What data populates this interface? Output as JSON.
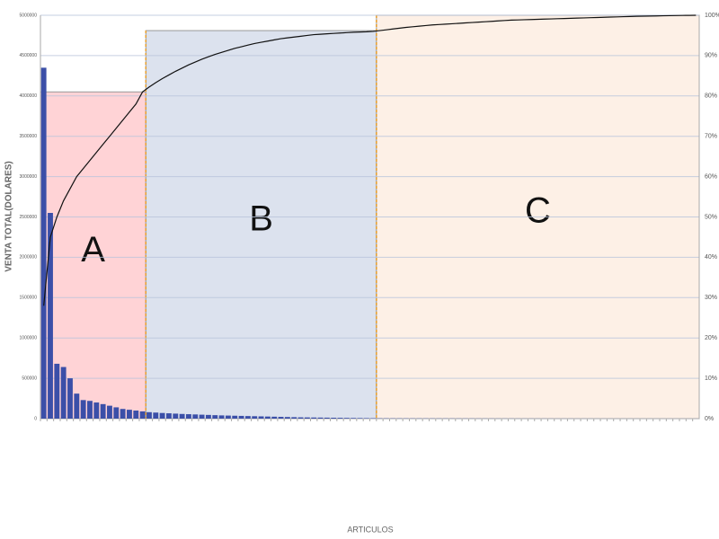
{
  "chart_data": {
    "type": "pareto",
    "y_label": "VENTA TOTAL(DOLARES)",
    "x_label": "ARTICULOS",
    "categories": [
      null,
      null,
      null,
      null,
      null,
      null,
      null,
      null,
      null,
      null,
      null,
      null,
      null,
      null,
      null,
      null,
      null,
      null,
      null,
      null,
      null,
      null,
      null,
      null,
      null,
      null,
      null,
      null,
      null,
      null,
      null,
      null,
      null,
      null,
      null,
      null,
      null,
      null,
      null,
      null,
      null,
      null,
      null,
      null,
      null,
      null,
      null,
      null,
      null,
      null,
      null,
      null,
      null,
      null,
      null,
      null,
      null,
      null,
      null,
      null,
      null,
      null,
      null,
      null,
      null,
      null,
      null,
      null,
      null,
      null,
      null,
      null,
      null,
      null,
      null,
      null,
      null,
      null,
      null,
      null,
      null,
      null,
      null,
      null,
      null,
      null,
      null,
      null,
      null,
      null,
      null,
      null,
      null,
      null,
      null,
      null,
      null,
      null,
      null,
      null
    ],
    "series": [
      {
        "type": "bar",
        "color": "#3b4fa8",
        "values": [
          4350000,
          2550000,
          680000,
          640000,
          500000,
          310000,
          230000,
          220000,
          200000,
          180000,
          160000,
          140000,
          120000,
          110000,
          100000,
          90000,
          80000,
          75000,
          70000,
          66000,
          62000,
          58000,
          55000,
          52000,
          49000,
          46000,
          43000,
          40000,
          38000,
          36000,
          34000,
          32000,
          30000,
          28000,
          26000,
          24000,
          22000,
          20000,
          18000,
          16000,
          15000,
          14000,
          13000,
          12000,
          11000,
          10000,
          9000,
          8000,
          7000,
          6000,
          5000,
          4000,
          3800,
          3600,
          3400,
          3200,
          3000,
          2900,
          2800,
          2700,
          2600,
          2500,
          2400,
          2300,
          2200,
          2100,
          2000,
          1900,
          1800,
          1700,
          1600,
          1500,
          1450,
          1400,
          1350,
          1300,
          1250,
          1200,
          1150,
          1100,
          1050,
          1000,
          950,
          900,
          850,
          800,
          780,
          760,
          740,
          720,
          700,
          680,
          660,
          640,
          620,
          600,
          580,
          560,
          540,
          520
        ]
      },
      {
        "type": "line",
        "axis": "y2",
        "color": "#111111",
        "values": [
          28,
          45,
          50,
          54,
          57,
          60,
          62,
          64,
          66,
          68,
          70,
          72,
          74,
          76,
          78,
          81,
          82.2,
          83.3,
          84.3,
          85.2,
          86.1,
          86.9,
          87.7,
          88.4,
          89.1,
          89.7,
          90.3,
          90.8,
          91.3,
          91.8,
          92.2,
          92.6,
          93.0,
          93.3,
          93.6,
          93.9,
          94.2,
          94.4,
          94.6,
          94.8,
          95.0,
          95.2,
          95.3,
          95.4,
          95.5,
          95.6,
          95.7,
          95.8,
          95.85,
          95.9,
          96,
          96.2,
          96.4,
          96.6,
          96.8,
          97.0,
          97.15,
          97.3,
          97.45,
          97.6,
          97.7,
          97.8,
          97.9,
          98.0,
          98.1,
          98.2,
          98.3,
          98.4,
          98.5,
          98.6,
          98.7,
          98.8,
          98.85,
          98.9,
          98.95,
          99.0,
          99.05,
          99.1,
          99.15,
          99.2,
          99.25,
          99.3,
          99.35,
          99.4,
          99.45,
          99.5,
          99.55,
          99.6,
          99.65,
          99.7,
          99.75,
          99.78,
          99.81,
          99.84,
          99.87,
          99.9,
          99.93,
          99.96,
          99.98,
          100
        ]
      }
    ],
    "zones": [
      {
        "label": "A",
        "start": 0,
        "end": 15,
        "top": 4050000,
        "color": "#ffd3d6"
      },
      {
        "label": "B",
        "start": 16,
        "end": 50,
        "top": 4810000,
        "color": "#dce2ee"
      },
      {
        "label": "C",
        "start": 51,
        "end": 99,
        "top": 5000000,
        "color": "#fdf0e6"
      }
    ],
    "ylim": [
      0,
      5000000
    ],
    "yticks": [
      0,
      500000,
      1000000,
      1500000,
      2000000,
      2500000,
      3000000,
      3500000,
      4000000,
      4500000,
      5000000
    ],
    "y2lim": [
      0,
      100
    ],
    "y2ticks": [
      {
        "value": 0,
        "label": "0%"
      },
      {
        "value": 10,
        "label": "10%"
      },
      {
        "value": 20,
        "label": "20%"
      },
      {
        "value": 30,
        "label": "30%"
      },
      {
        "value": 40,
        "label": "40%"
      },
      {
        "value": 50,
        "label": "50%"
      },
      {
        "value": 60,
        "label": "60%"
      },
      {
        "value": 70,
        "label": "70%"
      },
      {
        "value": 80,
        "label": "80%"
      },
      {
        "value": 90,
        "label": "90%"
      },
      {
        "value": 100,
        "label": "100%"
      }
    ],
    "grid": true
  }
}
